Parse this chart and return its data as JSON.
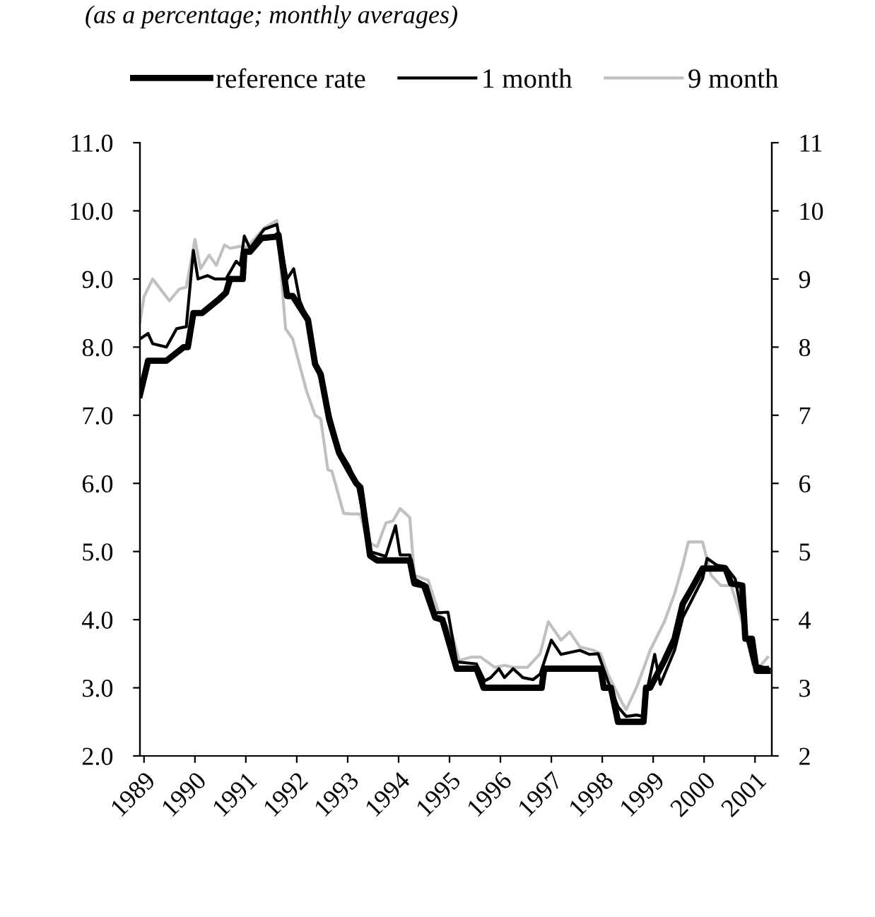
{
  "chart_data": {
    "type": "line",
    "title": "(as a percentage; monthly averages)",
    "xlim": [
      1988.92,
      2001.33
    ],
    "xticks": [
      1989,
      1990,
      1991,
      1992,
      1993,
      1994,
      1995,
      1996,
      1997,
      1998,
      1999,
      2000,
      2001
    ],
    "ylim": [
      2,
      11
    ],
    "yticks": [
      {
        "value": 2,
        "label": "2.0"
      },
      {
        "value": 3,
        "label": "3.0"
      },
      {
        "value": 4,
        "label": "4.0"
      },
      {
        "value": 5,
        "label": "5.0"
      },
      {
        "value": 6,
        "label": "6.0"
      },
      {
        "value": 7,
        "label": "7.0"
      },
      {
        "value": 8,
        "label": "8.0"
      },
      {
        "value": 9,
        "label": "9.0"
      },
      {
        "value": 10,
        "label": "10.0"
      },
      {
        "value": 11,
        "label": "11.0"
      }
    ],
    "y2lim": [
      2,
      11
    ],
    "y2ticks": [
      2,
      3,
      4,
      5,
      6,
      7,
      8,
      9,
      10,
      11
    ],
    "grid": false,
    "legend": "top",
    "marker": "none",
    "line_style": "solid",
    "series": [
      {
        "name": "reference rate",
        "color": "#000000",
        "x": [
          1988.92,
          1989.08,
          1989.44,
          1989.78,
          1989.86,
          1989.97,
          1990.14,
          1990.47,
          1990.61,
          1990.69,
          1990.94,
          1990.97,
          1991.08,
          1991.31,
          1991.58,
          1991.64,
          1991.81,
          1991.92,
          1992.22,
          1992.36,
          1992.47,
          1992.64,
          1992.83,
          1993.03,
          1993.17,
          1993.25,
          1993.44,
          1993.58,
          1994.22,
          1994.31,
          1994.5,
          1994.72,
          1994.86,
          1995.14,
          1995.53,
          1995.67,
          1996.81,
          1996.86,
          1997.97,
          1998.03,
          1998.17,
          1998.31,
          1998.81,
          1998.86,
          1998.94,
          1999.22,
          1999.42,
          1999.58,
          1999.78,
          1999.97,
          2000.42,
          2000.53,
          2000.75,
          2000.81,
          2000.94,
          2001.03,
          2001.25
        ],
        "values": [
          7.3,
          7.8,
          7.8,
          8.0,
          8.0,
          8.5,
          8.5,
          8.7,
          8.8,
          9.0,
          9.0,
          9.4,
          9.4,
          9.6,
          9.62,
          9.65,
          8.75,
          8.75,
          8.4,
          7.75,
          7.6,
          6.93,
          6.45,
          6.18,
          6.0,
          5.94,
          4.94,
          4.87,
          4.87,
          4.53,
          4.5,
          4.03,
          4.0,
          3.28,
          3.28,
          3.0,
          3.0,
          3.28,
          3.28,
          3.0,
          3.0,
          2.5,
          2.5,
          3.0,
          3.0,
          3.4,
          3.72,
          4.23,
          4.49,
          4.75,
          4.75,
          4.53,
          4.5,
          3.72,
          3.72,
          3.25,
          3.25
        ]
      },
      {
        "name": "1 month",
        "color": "#000000",
        "x": [
          1988.92,
          1989.08,
          1989.17,
          1989.44,
          1989.64,
          1989.83,
          1989.97,
          1990.06,
          1990.25,
          1990.39,
          1990.61,
          1990.81,
          1990.89,
          1990.97,
          1991.08,
          1991.36,
          1991.61,
          1991.81,
          1991.94,
          1992.06,
          1992.22,
          1992.36,
          1992.69,
          1992.83,
          1993.03,
          1993.19,
          1993.44,
          1993.75,
          1993.94,
          1994.03,
          1994.22,
          1994.31,
          1994.56,
          1994.72,
          1994.97,
          1995.14,
          1995.53,
          1995.69,
          1995.81,
          1995.97,
          1996.08,
          1996.25,
          1996.44,
          1996.64,
          1996.78,
          1997.0,
          1997.19,
          1997.56,
          1997.75,
          1997.92,
          1998.11,
          1998.31,
          1998.47,
          1998.67,
          1998.81,
          1998.89,
          1999.03,
          1999.14,
          1999.42,
          1999.58,
          1999.78,
          1999.97,
          2000.06,
          2000.25,
          2000.42,
          2000.61,
          2000.81,
          2000.97,
          2001.17,
          2001.25
        ],
        "values": [
          8.12,
          8.2,
          8.05,
          8.0,
          8.27,
          8.3,
          9.42,
          9.0,
          9.05,
          9.0,
          9.0,
          9.26,
          9.2,
          9.63,
          9.45,
          9.73,
          9.8,
          9.0,
          9.15,
          8.68,
          8.4,
          7.8,
          6.9,
          6.5,
          6.25,
          5.98,
          5.0,
          4.93,
          5.38,
          4.95,
          4.95,
          4.6,
          4.5,
          4.1,
          4.11,
          3.38,
          3.35,
          3.1,
          3.15,
          3.28,
          3.15,
          3.28,
          3.15,
          3.12,
          3.2,
          3.7,
          3.49,
          3.55,
          3.49,
          3.5,
          3.1,
          2.72,
          2.58,
          2.6,
          2.58,
          3.0,
          3.49,
          3.05,
          3.55,
          4.03,
          4.32,
          4.6,
          4.9,
          4.8,
          4.78,
          4.6,
          3.82,
          3.34,
          3.3,
          3.3
        ]
      },
      {
        "name": "9 month",
        "color": "#c0c0c0",
        "x": [
          1988.92,
          1989.0,
          1989.17,
          1989.5,
          1989.69,
          1989.83,
          1990.0,
          1990.11,
          1990.28,
          1990.42,
          1990.58,
          1990.69,
          1990.89,
          1991.03,
          1991.36,
          1991.61,
          1991.78,
          1991.92,
          1992.19,
          1992.36,
          1992.47,
          1992.61,
          1992.69,
          1992.92,
          1993.11,
          1993.25,
          1993.39,
          1993.58,
          1993.75,
          1993.89,
          1994.03,
          1994.22,
          1994.31,
          1994.58,
          1994.78,
          1995.06,
          1995.19,
          1995.42,
          1995.61,
          1995.89,
          1996.08,
          1996.25,
          1996.53,
          1996.78,
          1996.94,
          1997.19,
          1997.36,
          1997.56,
          1997.83,
          1997.97,
          1998.11,
          1998.39,
          1998.47,
          1998.67,
          1998.81,
          1998.94,
          1999.22,
          1999.42,
          1999.58,
          1999.69,
          1999.97,
          2000.14,
          2000.33,
          2000.53,
          2000.67,
          2000.89,
          2000.97,
          2001.08,
          2001.25
        ],
        "values": [
          8.36,
          8.74,
          9.0,
          8.68,
          8.85,
          8.88,
          9.58,
          9.15,
          9.35,
          9.2,
          9.5,
          9.45,
          9.48,
          9.47,
          9.75,
          9.86,
          8.27,
          8.12,
          7.36,
          7.0,
          6.95,
          6.2,
          6.18,
          5.56,
          5.55,
          5.55,
          5.14,
          5.07,
          5.42,
          5.45,
          5.63,
          5.5,
          4.65,
          4.58,
          4.12,
          3.76,
          3.4,
          3.45,
          3.45,
          3.3,
          3.33,
          3.3,
          3.3,
          3.5,
          3.97,
          3.7,
          3.82,
          3.6,
          3.55,
          3.5,
          3.2,
          2.78,
          2.68,
          3.0,
          3.28,
          3.55,
          3.97,
          4.38,
          4.8,
          5.14,
          5.14,
          4.65,
          4.5,
          4.5,
          4.17,
          3.6,
          3.3,
          3.3,
          3.45
        ]
      }
    ]
  }
}
